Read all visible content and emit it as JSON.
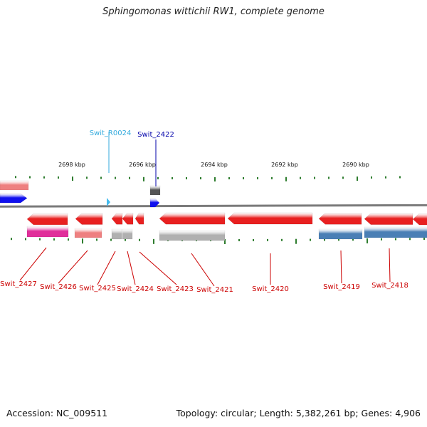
{
  "title": "Sphingomonas wittichii RW1, complete genome",
  "accession": "Accession: NC_009511",
  "stats": "Topology: circular; Length: 5,382,261 bp; Genes: 4,906",
  "ruler": [
    "2698 kbp",
    "2696 kbp",
    "2694 kbp",
    "2692 kbp",
    "2690 kbp"
  ],
  "colors": {
    "backbone": "#7a7a7a",
    "tick": "#2e7d2e",
    "red": "#e82020",
    "red_label": "#cc0000",
    "salmon": "#ee8080",
    "magenta": "#e0309a",
    "gray": "#b0b0b0",
    "steelblue": "#4a7fb5",
    "blue": "#1010ee",
    "darkblue_label": "#0000aa",
    "cyan_label": "#33aadd"
  },
  "features": [
    {
      "id": "Swit_R0024",
      "kind": "rRNA",
      "color": "cyan_label"
    },
    {
      "id": "Swit_2422",
      "kind": "CDS",
      "color": "darkblue_label"
    },
    {
      "id": "Swit_2427",
      "kind": "CDS",
      "color": "red_label"
    },
    {
      "id": "Swit_2426",
      "kind": "CDS",
      "color": "red_label"
    },
    {
      "id": "Swit_2425",
      "kind": "CDS",
      "color": "red_label"
    },
    {
      "id": "Swit_2424",
      "kind": "CDS",
      "color": "red_label"
    },
    {
      "id": "Swit_2423",
      "kind": "CDS",
      "color": "red_label"
    },
    {
      "id": "Swit_2421",
      "kind": "CDS",
      "color": "red_label"
    },
    {
      "id": "Swit_2420",
      "kind": "CDS",
      "color": "red_label"
    },
    {
      "id": "Swit_2419",
      "kind": "CDS",
      "color": "red_label"
    },
    {
      "id": "Swit_2418",
      "kind": "CDS",
      "color": "red_label"
    }
  ]
}
